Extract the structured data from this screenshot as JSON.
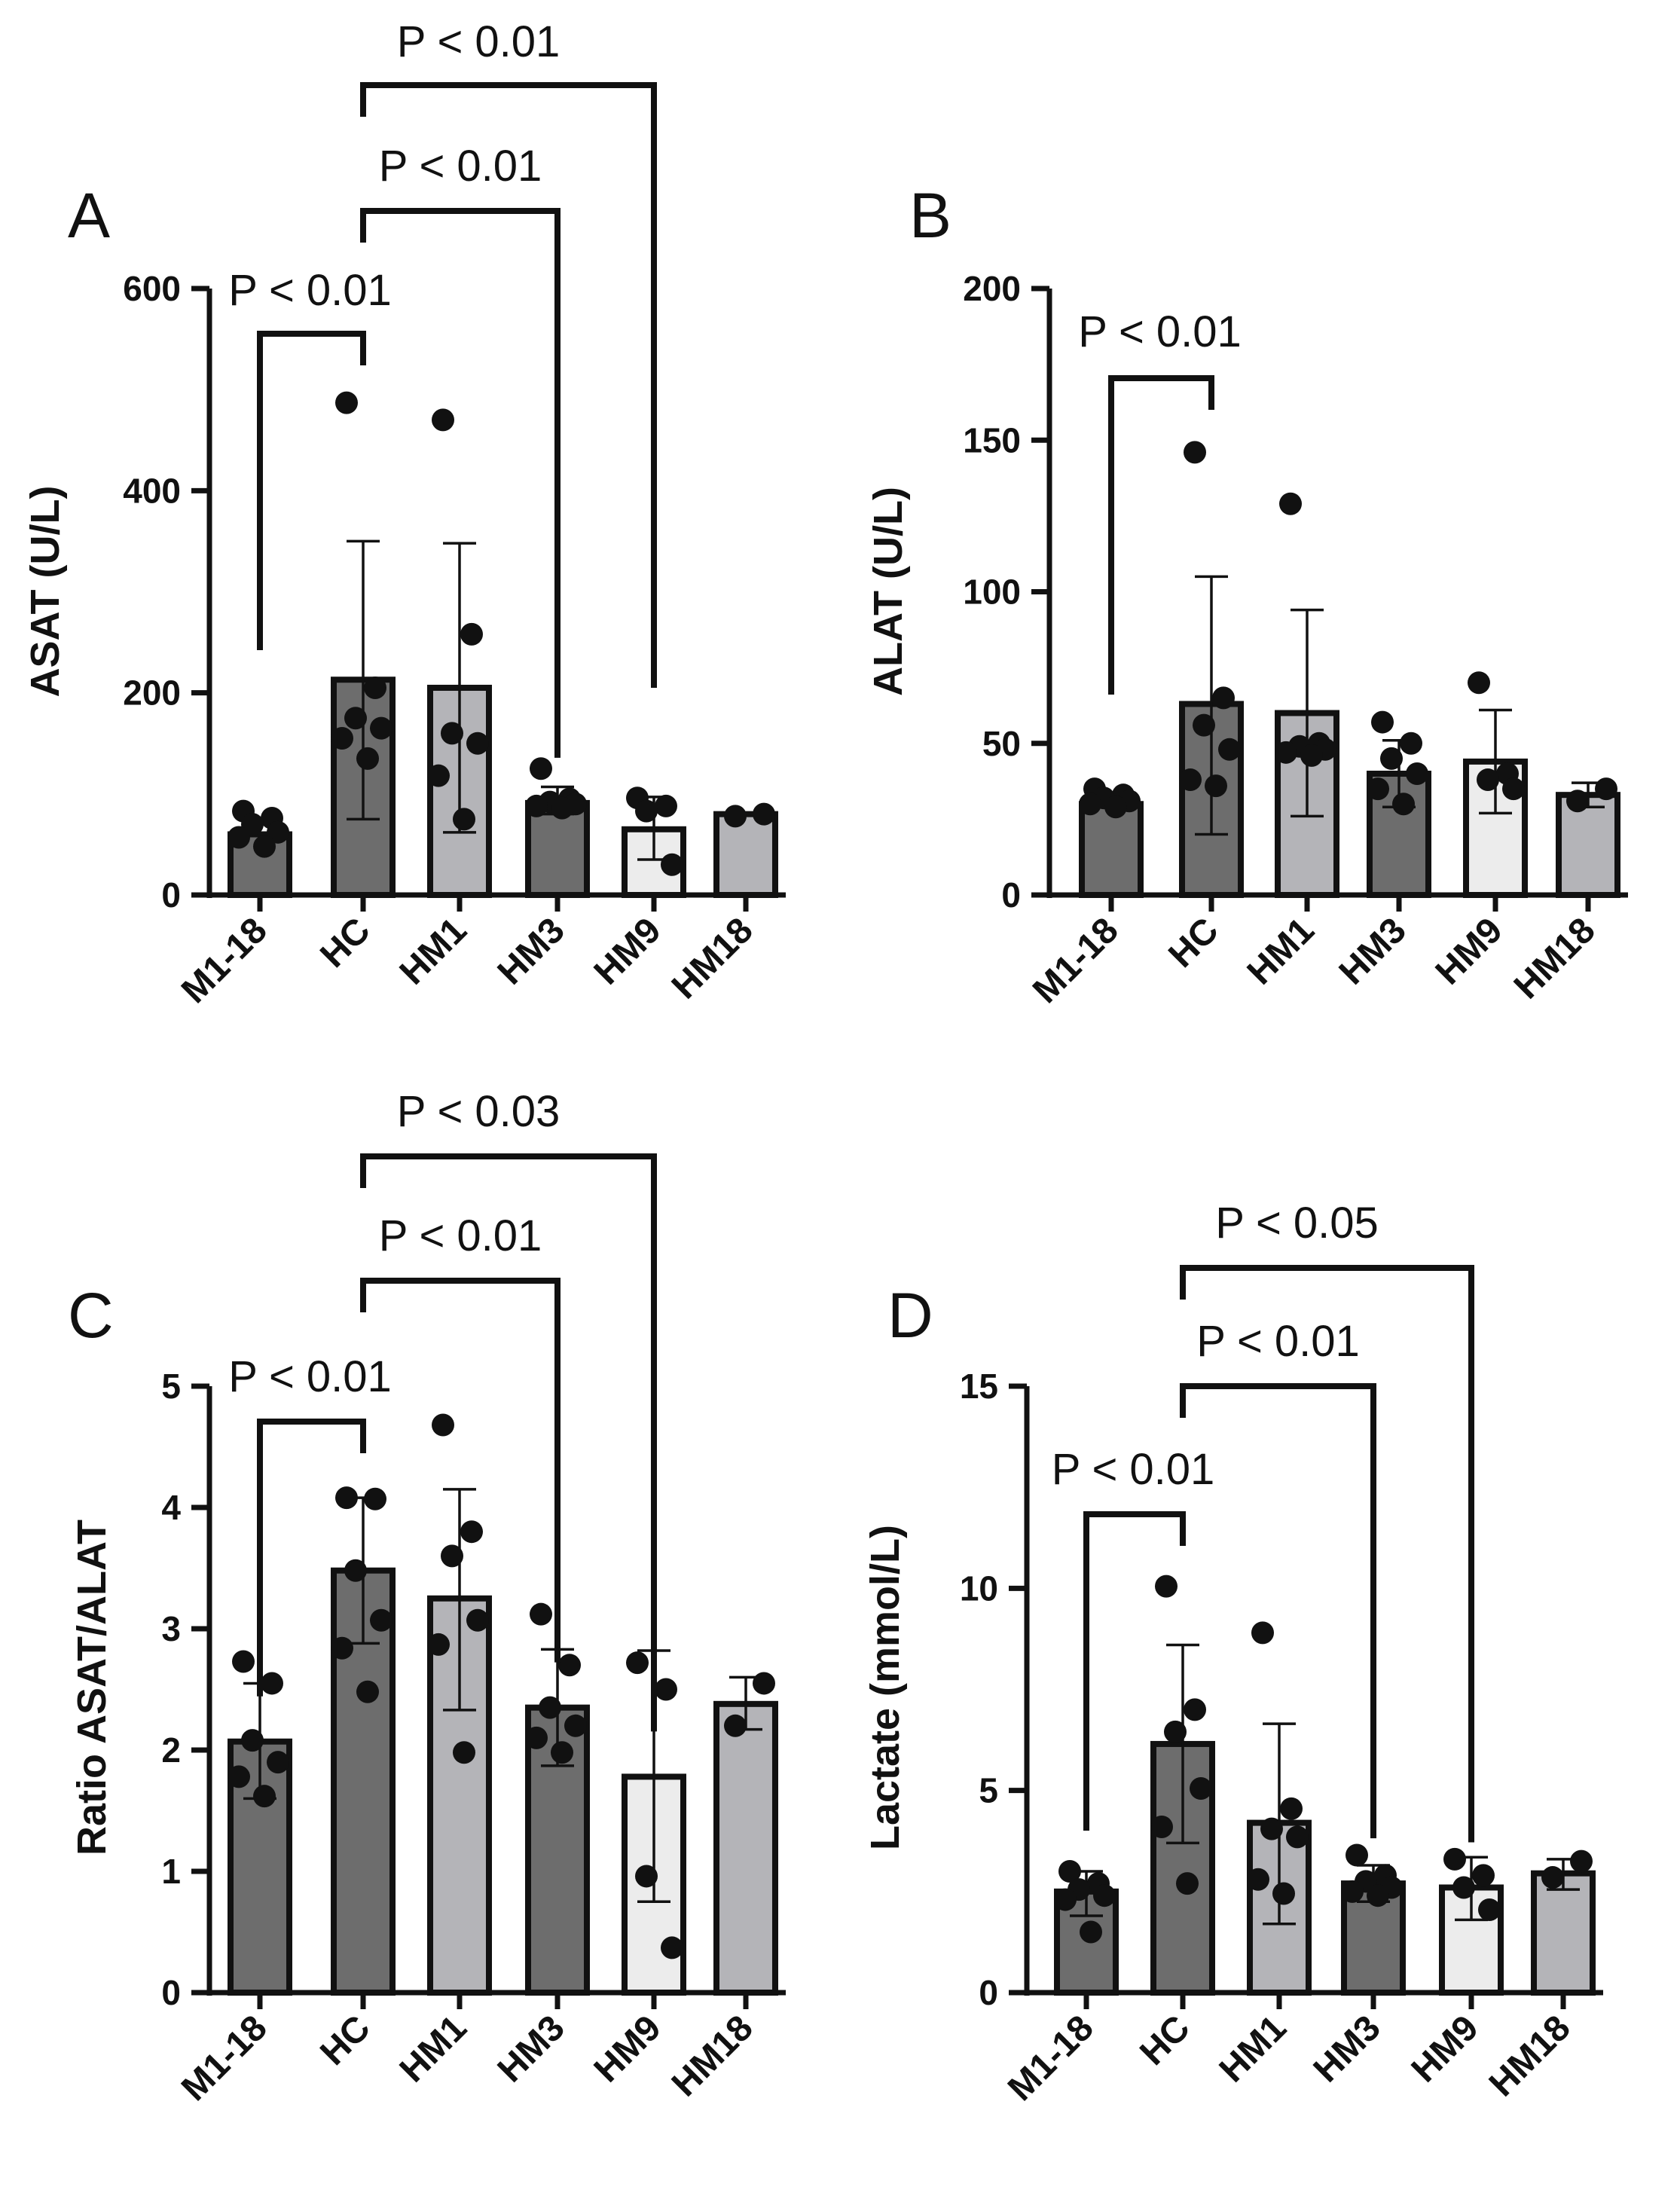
{
  "figure": {
    "colors": {
      "axis": "#111111",
      "M1-18": "#6d6d6d",
      "HC": "#6d6d6d",
      "HM1": "#b4b4b8",
      "HM3": "#6d6d6d",
      "HM9": "#ececec",
      "HM18": "#b4b4b8"
    }
  },
  "chart_data": [
    {
      "panel": "A",
      "type": "bar",
      "title": "",
      "xlabel": "",
      "ylabel": "ASAT (U/L)",
      "ylim": [
        0,
        600
      ],
      "yticks": [
        0,
        200,
        400,
        600
      ],
      "categories": [
        "M1-18",
        "HC",
        "HM1",
        "HM3",
        "HM9",
        "HM18"
      ],
      "series": [
        {
          "name": "mean",
          "values": [
            60,
            213,
            205,
            91,
            65,
            80
          ]
        }
      ],
      "error_bars": [
        [
          null,
          null
        ],
        [
          75,
          350
        ],
        [
          62,
          348
        ],
        [
          80,
          107
        ],
        [
          35,
          97
        ],
        [
          null,
          null
        ]
      ],
      "points": [
        [
          83,
          76,
          70,
          62,
          57,
          48
        ],
        [
          487,
          205,
          175,
          165,
          155,
          135
        ],
        [
          470,
          258,
          160,
          150,
          118,
          75
        ],
        [
          125,
          95,
          92,
          90,
          88,
          86
        ],
        [
          96,
          88,
          83,
          30
        ],
        [
          80,
          78
        ]
      ],
      "significance": [
        {
          "from": "M1-18",
          "to": "HC",
          "label": "P < 0.01"
        },
        {
          "from": "HC",
          "to": "HM3",
          "label": "P < 0.01"
        },
        {
          "from": "HC",
          "to": "HM9",
          "label": "P < 0.01"
        }
      ]
    },
    {
      "panel": "B",
      "type": "bar",
      "title": "",
      "xlabel": "",
      "ylabel": "ALAT (U/L)",
      "ylim": [
        0,
        200
      ],
      "yticks": [
        0,
        50,
        100,
        150,
        200
      ],
      "categories": [
        "M1-18",
        "HC",
        "HM1",
        "HM3",
        "HM9",
        "HM18"
      ],
      "series": [
        {
          "name": "mean",
          "values": [
            30,
            63,
            60,
            40,
            44,
            33
          ]
        }
      ],
      "error_bars": [
        [
          null,
          null
        ],
        [
          20,
          105
        ],
        [
          26,
          94
        ],
        [
          29,
          51
        ],
        [
          27,
          61
        ],
        [
          29,
          37
        ]
      ],
      "points": [
        [
          35,
          33,
          32,
          31,
          30,
          29
        ],
        [
          146,
          65,
          56,
          48,
          38,
          36
        ],
        [
          129,
          50,
          49,
          48,
          47,
          46
        ],
        [
          57,
          50,
          45,
          40,
          35,
          30
        ],
        [
          70,
          40,
          38,
          35
        ],
        [
          35,
          31
        ]
      ],
      "significance": [
        {
          "from": "M1-18",
          "to": "HC",
          "label": "P < 0.01"
        }
      ]
    },
    {
      "panel": "C",
      "type": "bar",
      "title": "",
      "xlabel": "",
      "ylabel": "Ratio ASAT/ALAT",
      "ylim": [
        0,
        5
      ],
      "yticks": [
        0,
        1,
        2,
        3,
        4,
        5
      ],
      "categories": [
        "M1-18",
        "HC",
        "HM1",
        "HM3",
        "HM9",
        "HM18"
      ],
      "series": [
        {
          "name": "mean",
          "values": [
            2.07,
            3.48,
            3.25,
            2.35,
            1.78,
            2.38
          ]
        }
      ],
      "error_bars": [
        [
          1.6,
          2.55
        ],
        [
          2.88,
          4.08
        ],
        [
          2.33,
          4.15
        ],
        [
          1.87,
          2.83
        ],
        [
          0.75,
          2.82
        ],
        [
          2.17,
          2.6
        ]
      ],
      "points": [
        [
          2.73,
          2.55,
          2.08,
          1.9,
          1.78,
          1.62
        ],
        [
          4.08,
          4.07,
          3.48,
          3.07,
          2.84,
          2.48
        ],
        [
          4.68,
          3.8,
          3.6,
          3.07,
          2.87,
          1.98
        ],
        [
          3.12,
          2.7,
          2.35,
          2.2,
          2.1,
          1.98
        ],
        [
          2.72,
          2.5,
          0.96,
          0.37
        ],
        [
          2.55,
          2.2
        ]
      ],
      "significance": [
        {
          "from": "M1-18",
          "to": "HC",
          "label": "P < 0.01"
        },
        {
          "from": "HC",
          "to": "HM3",
          "label": "P < 0.01"
        },
        {
          "from": "HC",
          "to": "HM9",
          "label": "P < 0.03"
        }
      ]
    },
    {
      "panel": "D",
      "type": "bar",
      "title": "",
      "xlabel": "",
      "ylabel": "Lactate (mmol/L)",
      "ylim": [
        0,
        15
      ],
      "yticks": [
        0,
        5,
        10,
        15
      ],
      "categories": [
        "M1-18",
        "HC",
        "HM1",
        "HM3",
        "HM9",
        "HM18"
      ],
      "series": [
        {
          "name": "mean",
          "values": [
            2.5,
            6.15,
            4.2,
            2.7,
            2.6,
            2.95
          ]
        }
      ],
      "error_bars": [
        [
          1.9,
          3.0
        ],
        [
          3.7,
          8.6
        ],
        [
          1.7,
          6.65
        ],
        [
          2.25,
          3.15
        ],
        [
          1.8,
          3.35
        ],
        [
          2.55,
          3.3
        ]
      ],
      "points": [
        [
          3.0,
          2.7,
          2.55,
          2.4,
          2.3,
          1.5
        ],
        [
          10.05,
          7.0,
          6.45,
          5.05,
          4.1,
          2.7
        ],
        [
          8.9,
          4.55,
          4.05,
          3.85,
          2.8,
          2.45
        ],
        [
          3.4,
          2.9,
          2.75,
          2.6,
          2.5,
          2.4
        ],
        [
          3.3,
          2.9,
          2.6,
          2.05
        ],
        [
          3.25,
          2.85
        ]
      ],
      "significance": [
        {
          "from": "M1-18",
          "to": "HC",
          "label": "P < 0.01"
        },
        {
          "from": "HC",
          "to": "HM3",
          "label": "P < 0.01"
        },
        {
          "from": "HC",
          "to": "HM9",
          "label": "P < 0.05"
        }
      ]
    }
  ]
}
